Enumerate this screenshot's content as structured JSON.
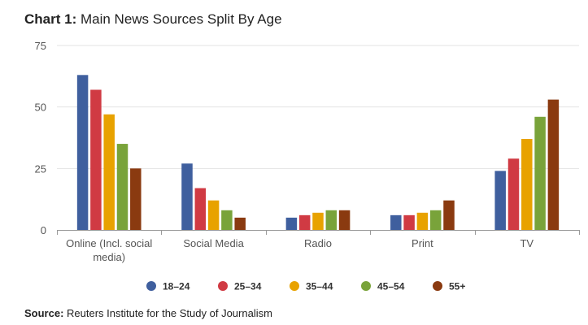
{
  "title": {
    "prefix": "Chart 1:",
    "text": "Main News Sources Split By Age"
  },
  "source": {
    "prefix": "Source:",
    "text": "Reuters Institute for the Study of Journalism"
  },
  "chart_data": {
    "type": "bar",
    "title": "Chart 1: Main News Sources Split By Age",
    "xlabel": "",
    "ylabel": "",
    "ylim": [
      0,
      75
    ],
    "yticks": [
      0,
      25,
      50,
      75
    ],
    "grid": true,
    "legend_position": "bottom",
    "categories": [
      [
        "Online (Incl. social",
        "media)"
      ],
      [
        "Social Media"
      ],
      [
        "Radio"
      ],
      [
        "Print"
      ],
      [
        "TV"
      ]
    ],
    "series": [
      {
        "name": "18–24",
        "color": "#3f5f9e",
        "values": [
          63,
          27,
          5,
          6,
          24
        ]
      },
      {
        "name": "25–34",
        "color": "#d03a43",
        "values": [
          57,
          17,
          6,
          6,
          29
        ]
      },
      {
        "name": "35–44",
        "color": "#e8a200",
        "values": [
          47,
          12,
          7,
          7,
          37
        ]
      },
      {
        "name": "45–54",
        "color": "#79a33a",
        "values": [
          35,
          8,
          8,
          8,
          46
        ]
      },
      {
        "name": "55+",
        "color": "#8a3a10",
        "values": [
          25,
          5,
          8,
          12,
          53
        ]
      }
    ]
  }
}
